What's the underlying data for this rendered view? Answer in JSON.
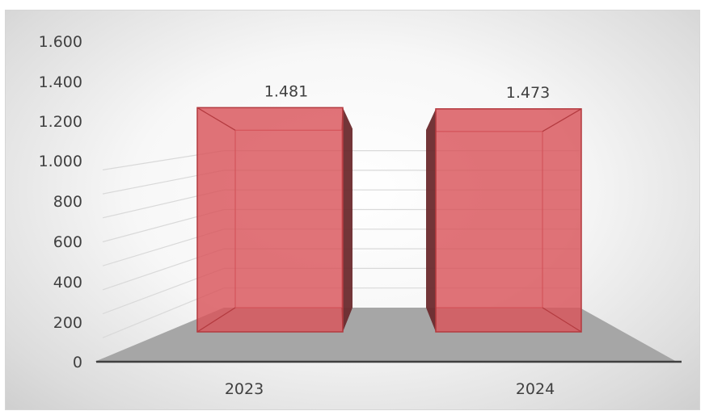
{
  "chart_data": {
    "type": "bar",
    "style": "3d",
    "categories": [
      "2023",
      "2024"
    ],
    "values": [
      1481,
      1473
    ],
    "data_labels": [
      "1.481",
      "1.473"
    ],
    "yticks": [
      0,
      200,
      400,
      600,
      800,
      1000,
      1200,
      1400,
      1600
    ],
    "ytick_labels": [
      "0",
      "200",
      "400",
      "600",
      "800",
      "1.000",
      "1.200",
      "1.400",
      "1.600"
    ],
    "ylim": [
      0,
      1600
    ],
    "grid": true,
    "legend": "none",
    "title": "",
    "xlabel": "",
    "ylabel": "",
    "colors": {
      "bar_front": "#d9545a",
      "bar_edge": "#b33a3f",
      "bar_side": "#6b2a2d",
      "floor": "#a6a6a6",
      "axis": "#404040",
      "grid": "#d9d9d9"
    }
  }
}
